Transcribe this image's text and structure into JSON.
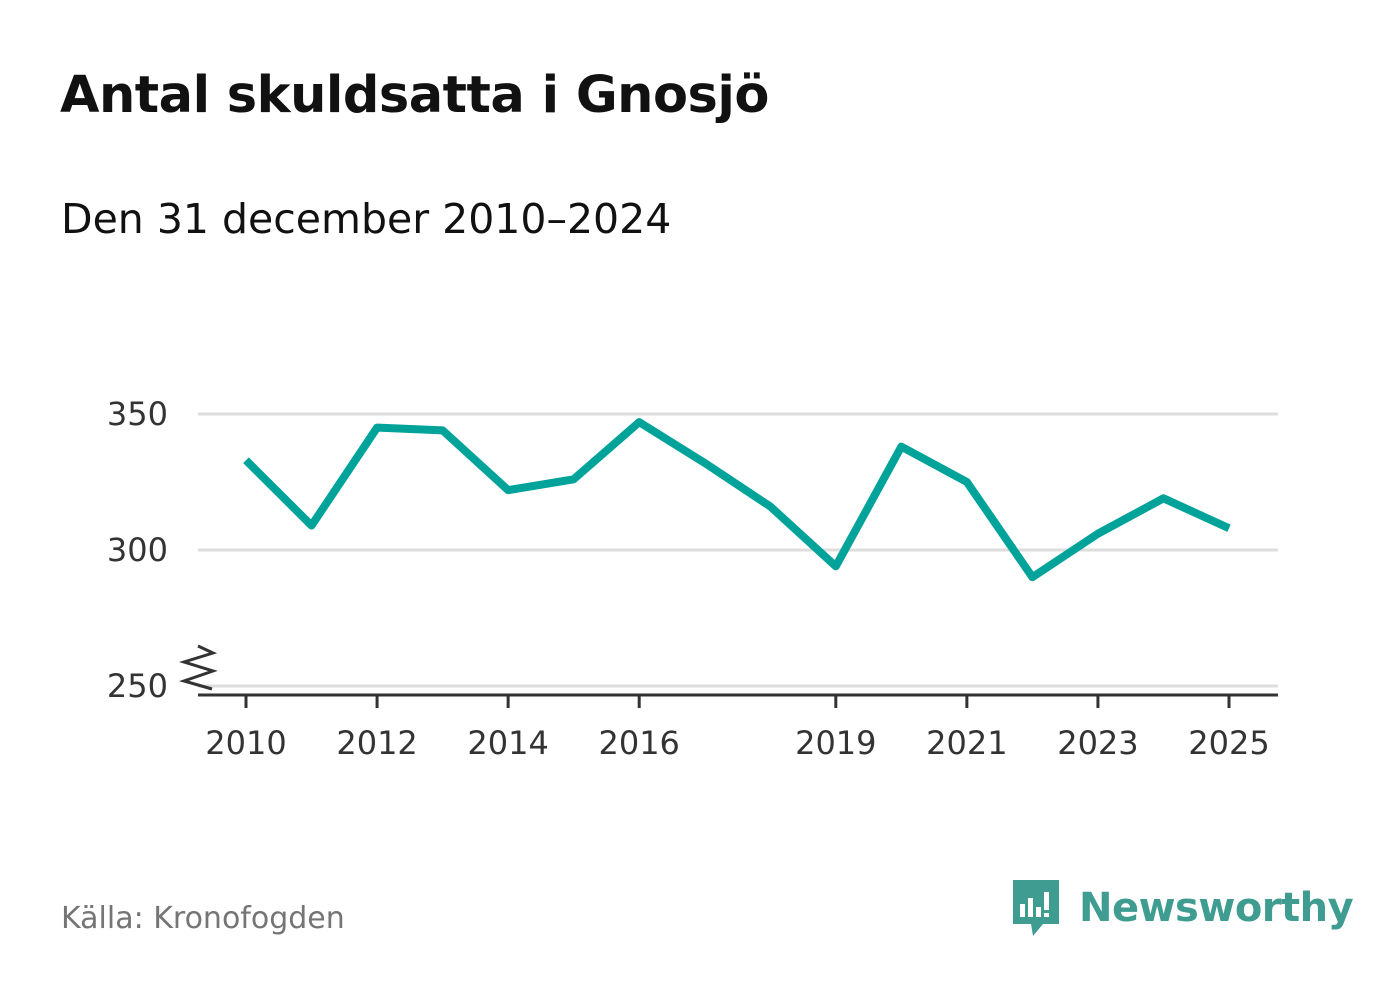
{
  "header": {
    "title": "Antal skuldsatta i Gnosjö",
    "subtitle": "Den 31 december 2010–2024"
  },
  "footer": {
    "source": "Källa: Kronofogden",
    "brand": "Newsworthy",
    "brand_icon": "bar-chart-speech-bubble-icon"
  },
  "colors": {
    "line": "#00a39a",
    "brand": "#3f9c90",
    "grid": "#dddddd",
    "axis": "#333333"
  },
  "chart_data": {
    "type": "line",
    "x": [
      2010,
      2011,
      2012,
      2013,
      2014,
      2015,
      2016,
      2017,
      2018,
      2019,
      2020,
      2021,
      2022,
      2023,
      2024,
      2025
    ],
    "series": [
      {
        "values": [
          333,
          309,
          345,
          344,
          322,
          326,
          347,
          332,
          316,
          294,
          338,
          325,
          290,
          306,
          319,
          308
        ]
      }
    ],
    "x_ticks": [
      2010,
      2012,
      2014,
      2016,
      2019,
      2021,
      2023,
      2025
    ],
    "y_ticks": [
      250,
      300,
      350
    ],
    "ylim": [
      250,
      350
    ],
    "xlim": [
      2010,
      2025
    ],
    "y_axis_break": true,
    "grid": true
  }
}
